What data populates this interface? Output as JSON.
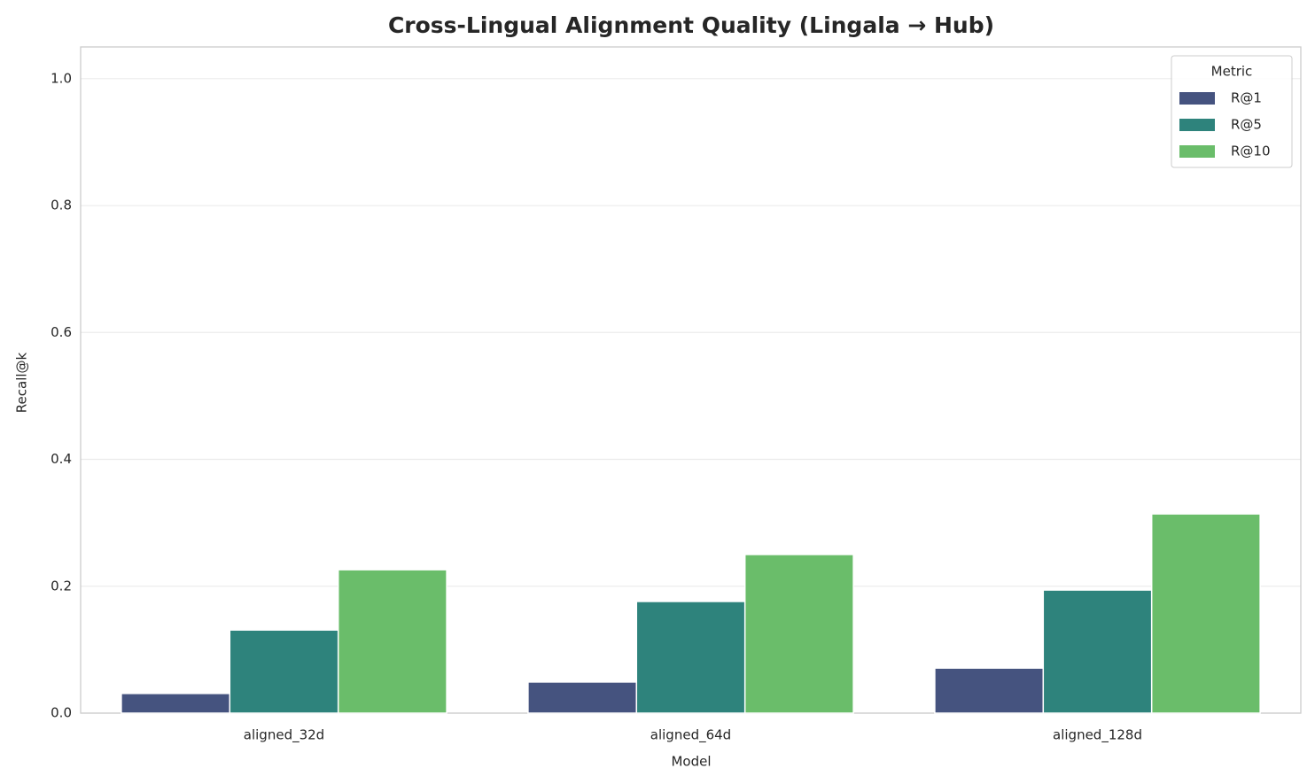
{
  "chart_data": {
    "type": "bar",
    "title": "Cross-Lingual Alignment Quality (Lingala → Hub)",
    "xlabel": "Model",
    "ylabel": "Recall@k",
    "categories": [
      "aligned_32d",
      "aligned_64d",
      "aligned_128d"
    ],
    "series": [
      {
        "name": "R@1",
        "color": "#45537f",
        "values": [
          0.031,
          0.049,
          0.071
        ]
      },
      {
        "name": "R@5",
        "color": "#2e837c",
        "values": [
          0.131,
          0.176,
          0.194
        ]
      },
      {
        "name": "R@10",
        "color": "#6abd6a",
        "values": [
          0.226,
          0.25,
          0.314
        ]
      }
    ],
    "legend_title": "Metric",
    "legend": "upper right",
    "ylim": [
      0,
      1.05
    ],
    "yticks": [
      {
        "value": 0,
        "label": "0.0"
      },
      0.2,
      0.4,
      0.6,
      0.8,
      {
        "value": 1,
        "label": "1.0"
      }
    ],
    "grid": true
  }
}
